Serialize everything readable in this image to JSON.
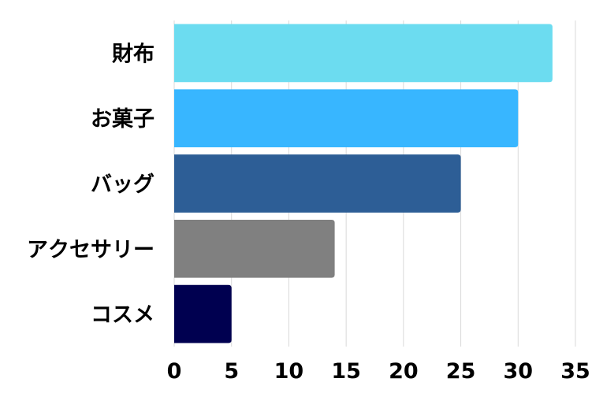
{
  "chart_data": {
    "type": "bar",
    "orientation": "horizontal",
    "categories": [
      "財布",
      "お菓子",
      "バッグ",
      "アクセサリー",
      "コスメ"
    ],
    "values": [
      33,
      30,
      25,
      14,
      5
    ],
    "colors": [
      "#6cdcf0",
      "#38b6ff",
      "#2d5e96",
      "#808080",
      "#000050"
    ],
    "xlim": [
      0,
      35
    ],
    "xticks": [
      0,
      5,
      10,
      15,
      20,
      25,
      30,
      35
    ],
    "grid": true,
    "legend": "none"
  }
}
